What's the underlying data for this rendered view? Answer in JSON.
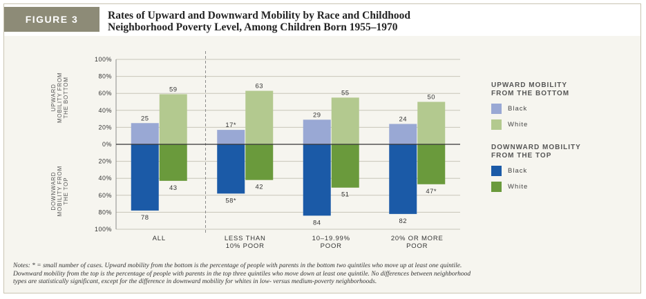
{
  "figure": {
    "label": "FIGURE 3",
    "title_line1": "Rates of Upward and Downward Mobility by Race and Childhood",
    "title_line2": "Neighborhood Poverty Level, Among Children Born 1955–1970"
  },
  "chart_data": {
    "type": "bar",
    "title": "Rates of Upward and Downward Mobility by Race and Childhood Neighborhood Poverty Level, Among Children Born 1955–1970",
    "categories": [
      [
        "ALL"
      ],
      [
        "LESS THAN",
        "10% POOR"
      ],
      [
        "10–19.99%",
        "POOR"
      ],
      [
        "20% OR MORE",
        "POOR"
      ]
    ],
    "y_axis_label_upper": [
      "UPWARD",
      "MOBILITY FROM",
      "THE BOTTOM"
    ],
    "y_axis_label_lower": [
      "DOWNWARD",
      "MOBILITY FROM",
      "THE TOP"
    ],
    "ylim": [
      -100,
      100
    ],
    "yticks": [
      100,
      80,
      60,
      40,
      20,
      0,
      -20,
      -40,
      -60,
      -80,
      -100
    ],
    "ytick_labels": [
      "100%",
      "80%",
      "60%",
      "40%",
      "20%",
      "0%",
      "20%",
      "40%",
      "60%",
      "80%",
      "100%"
    ],
    "series": [
      {
        "group": "UPWARD MOBILITY FROM THE BOTTOM",
        "name": "Black",
        "direction": "up",
        "color": "#99a8d4",
        "values": [
          25,
          17,
          29,
          24
        ],
        "labels": [
          "25",
          "17*",
          "29",
          "24"
        ]
      },
      {
        "group": "UPWARD MOBILITY FROM THE BOTTOM",
        "name": "White",
        "direction": "up",
        "color": "#b3c98f",
        "values": [
          59,
          63,
          55,
          50
        ],
        "labels": [
          "59",
          "63",
          "55",
          "50"
        ]
      },
      {
        "group": "DOWNWARD MOBILITY FROM THE TOP",
        "name": "Black",
        "direction": "down",
        "color": "#1b5aa7",
        "values": [
          78,
          58,
          84,
          82
        ],
        "labels": [
          "78",
          "58*",
          "84",
          "82"
        ]
      },
      {
        "group": "DOWNWARD MOBILITY FROM THE TOP",
        "name": "White",
        "direction": "down",
        "color": "#6a9a3c",
        "values": [
          43,
          42,
          51,
          47
        ],
        "labels": [
          "43",
          "42",
          "51",
          "47*"
        ]
      }
    ],
    "legend": {
      "placement": "right",
      "groups": [
        {
          "title_line1": "UPWARD MOBILITY",
          "title_line2": "FROM THE BOTTOM",
          "items": [
            {
              "label": "Black",
              "color": "#99a8d4"
            },
            {
              "label": "White",
              "color": "#b3c98f"
            }
          ]
        },
        {
          "title_line1": "DOWNWARD MOBILITY",
          "title_line2": "FROM THE TOP",
          "items": [
            {
              "label": "Black",
              "color": "#1b5aa7"
            },
            {
              "label": "White",
              "color": "#6a9a3c"
            }
          ]
        }
      ]
    },
    "grid": true
  },
  "notes": {
    "line1": "Notes: * = small number of cases. Upward mobility from the bottom is the percentage of people with parents in the bottom two quintiles who move up at least one quintile.",
    "line2": "Downward mobility from the top is the percentage of people with parents in the top three quintiles who move down at least one quintile. No differences between neighborhood",
    "line3": "types are statistically significant, except for the difference in downward mobility for whites in low- versus medium-poverty neighborhoods."
  }
}
